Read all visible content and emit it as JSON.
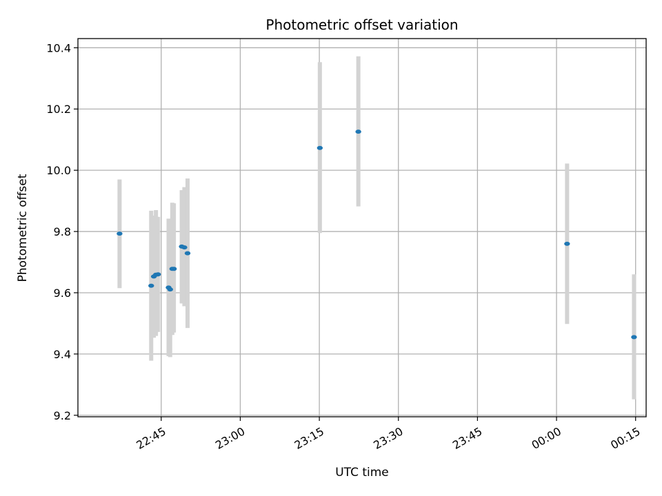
{
  "chart_data": {
    "type": "scatter",
    "title": "Photometric offset variation",
    "xlabel": "UTC time",
    "ylabel": "Photometric offset",
    "x_ticks": [
      {
        "minutes": 45,
        "label": "22:45"
      },
      {
        "minutes": 60,
        "label": "23:00"
      },
      {
        "minutes": 75,
        "label": "23:15"
      },
      {
        "minutes": 90,
        "label": "23:30"
      },
      {
        "minutes": 105,
        "label": "23:45"
      },
      {
        "minutes": 120,
        "label": "00:00"
      },
      {
        "minutes": 135,
        "label": "00:15"
      }
    ],
    "y_ticks": [
      {
        "value": 9.2,
        "label": "9.2"
      },
      {
        "value": 9.4,
        "label": "9.4"
      },
      {
        "value": 9.6,
        "label": "9.6"
      },
      {
        "value": 9.8,
        "label": "9.8"
      },
      {
        "value": 10.0,
        "label": "10.0"
      },
      {
        "value": 10.2,
        "label": "10.2"
      },
      {
        "value": 10.4,
        "label": "10.4"
      }
    ],
    "xlim_minutes": [
      29.2,
      137.0
    ],
    "ylim": [
      9.195,
      10.43
    ],
    "grid": true,
    "marker_color": "#1f77b4",
    "errorbar_color": "#d3d3d3",
    "points": [
      {
        "time": "22:37.1",
        "minutes": 37.1,
        "y": 9.793,
        "low": 9.615,
        "high": 9.97
      },
      {
        "time": "22:43.1",
        "minutes": 43.1,
        "y": 9.623,
        "low": 9.378,
        "high": 9.868
      },
      {
        "time": "22:43.6",
        "minutes": 43.6,
        "y": 9.653,
        "low": 9.453,
        "high": 9.852
      },
      {
        "time": "22:44.0",
        "minutes": 44.0,
        "y": 9.659,
        "low": 9.459,
        "high": 9.87
      },
      {
        "time": "22:44.4",
        "minutes": 44.4,
        "y": 9.66,
        "low": 9.472,
        "high": 9.848
      },
      {
        "time": "22:46.4",
        "minutes": 46.4,
        "y": 9.617,
        "low": 9.393,
        "high": 9.842
      },
      {
        "time": "22:46.7",
        "minutes": 46.7,
        "y": 9.611,
        "low": 9.39,
        "high": 9.833
      },
      {
        "time": "22:47.1",
        "minutes": 47.1,
        "y": 9.678,
        "low": 9.462,
        "high": 9.894
      },
      {
        "time": "22:47.4",
        "minutes": 47.4,
        "y": 9.678,
        "low": 9.47,
        "high": 9.892
      },
      {
        "time": "22:48.9",
        "minutes": 48.9,
        "y": 9.751,
        "low": 9.565,
        "high": 9.935
      },
      {
        "time": "22:49.4",
        "minutes": 49.4,
        "y": 9.748,
        "low": 9.556,
        "high": 9.945
      },
      {
        "time": "22:50.0",
        "minutes": 50.0,
        "y": 9.729,
        "low": 9.485,
        "high": 9.973
      },
      {
        "time": "23:15.1",
        "minutes": 75.1,
        "y": 10.073,
        "low": 9.795,
        "high": 10.353
      },
      {
        "time": "23:22.4",
        "minutes": 82.4,
        "y": 10.126,
        "low": 9.882,
        "high": 10.372
      },
      {
        "time": "00:02.0",
        "minutes": 122.0,
        "y": 9.76,
        "low": 9.498,
        "high": 10.022
      },
      {
        "time": "00:14.7",
        "minutes": 134.7,
        "y": 9.455,
        "low": 9.252,
        "high": 9.66
      }
    ]
  }
}
